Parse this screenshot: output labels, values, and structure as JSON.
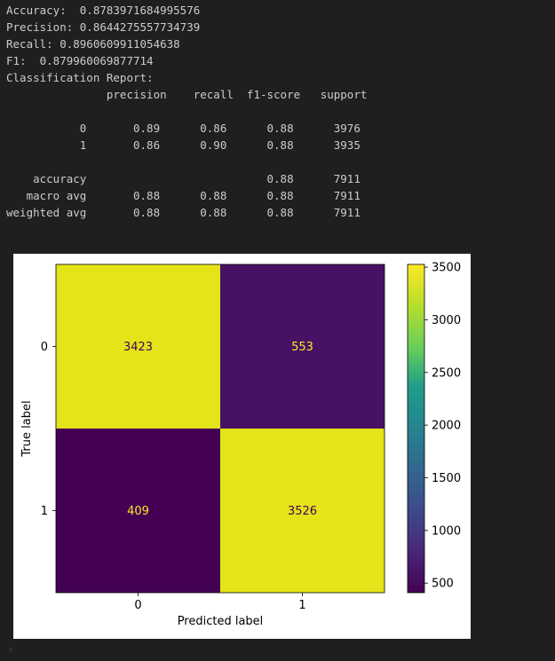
{
  "output": {
    "lines": [
      "Accuracy:  0.8783971684995576",
      "Precision: 0.8644275557734739",
      "Recall: 0.8960609911054638",
      "F1:  0.879960069877714",
      "Classification Report:",
      "               precision    recall  f1-score   support",
      "",
      "           0       0.89      0.86      0.88      3976",
      "           1       0.86      0.90      0.88      3935",
      "",
      "    accuracy                           0.88      7911",
      "   macro avg       0.88      0.88      0.88      7911",
      "weighted avg       0.88      0.88      0.88      7911"
    ]
  },
  "chart_data": {
    "type": "heatmap",
    "title": "",
    "xlabel": "Predicted label",
    "ylabel": "True label",
    "x_categories": [
      "0",
      "1"
    ],
    "y_categories": [
      "0",
      "1"
    ],
    "matrix": [
      [
        3423,
        553
      ],
      [
        409,
        3526
      ]
    ],
    "colormap": "viridis",
    "colorbar": {
      "ticks": [
        "500",
        "1000",
        "1500",
        "2000",
        "2500",
        "3000",
        "3500"
      ],
      "tick_values": [
        500,
        1000,
        1500,
        2000,
        2500,
        3000,
        3500
      ],
      "range": [
        409,
        3526
      ]
    },
    "cell_colors": {
      "high": "#e4e419",
      "low": "#440154",
      "mid_dark": "#471164"
    },
    "text_colors": {
      "on_dark": "#fde725",
      "on_light": "#440154"
    }
  },
  "scroll_indicator": "‹"
}
